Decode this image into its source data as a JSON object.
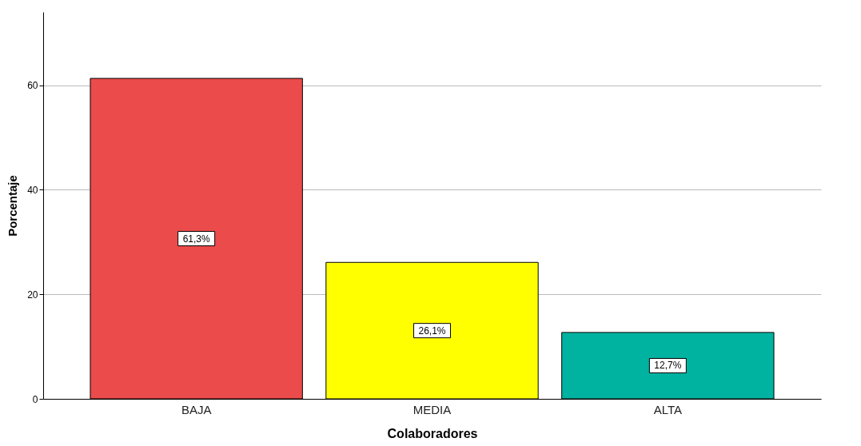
{
  "chart_data": {
    "type": "bar",
    "xlabel": "Colaboradores",
    "ylabel": "Porcentaje",
    "categories": [
      "BAJA",
      "MEDIA",
      "ALTA"
    ],
    "values": [
      61.3,
      26.1,
      12.7
    ],
    "colors": [
      "#ec4b4b",
      "#ffff00",
      "#00b2a0"
    ],
    "value_labels": [
      "61,3%",
      "26,1%",
      "12,7%"
    ],
    "ylim": [
      0,
      74
    ],
    "yticks": [
      0,
      20,
      40,
      60
    ],
    "grid": "y"
  }
}
